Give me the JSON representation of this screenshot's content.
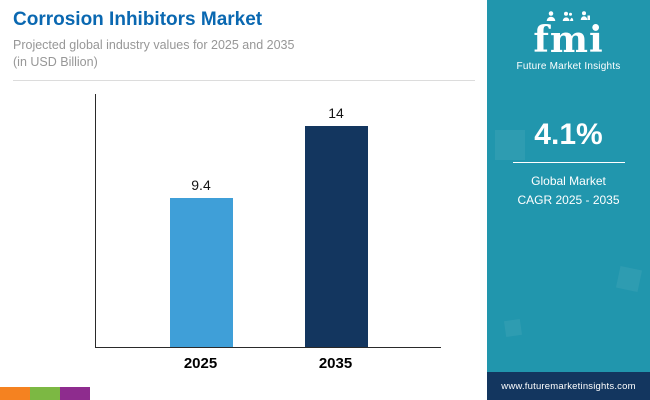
{
  "header": {
    "title": "Corrosion Inhibitors Market",
    "title_color": "#0a68b1",
    "subtitle_line1": "Projected global industry values for 2025 and 2035",
    "subtitle_line2": "(in USD Billion)"
  },
  "chart_data": {
    "type": "bar",
    "title": "Corrosion Inhibitors Market",
    "subtitle": "Projected global industry values for 2025 and 2035 (in USD Billion)",
    "categories": [
      "2025",
      "2035"
    ],
    "values": [
      9.4,
      14
    ],
    "colors": [
      "#3f9fd8",
      "#13365f"
    ],
    "xlabel": "",
    "ylabel": "",
    "ylim": [
      0,
      16
    ],
    "grid": false,
    "legend": "none",
    "data_labels": true
  },
  "sidebar": {
    "bg_color": "#2196ad",
    "logo_text": "fmi",
    "logo_caption": "Future Market Insights",
    "cagr_value": "4.1%",
    "cagr_label_line1": "Global Market",
    "cagr_label_line2": "CAGR 2025 - 2035",
    "footer_url": "www.futuremarketinsights.com",
    "footer_bg": "#13365f"
  },
  "brand_strip": {
    "colors": [
      "#f58220",
      "#7cb843",
      "#8e2c8e"
    ]
  }
}
